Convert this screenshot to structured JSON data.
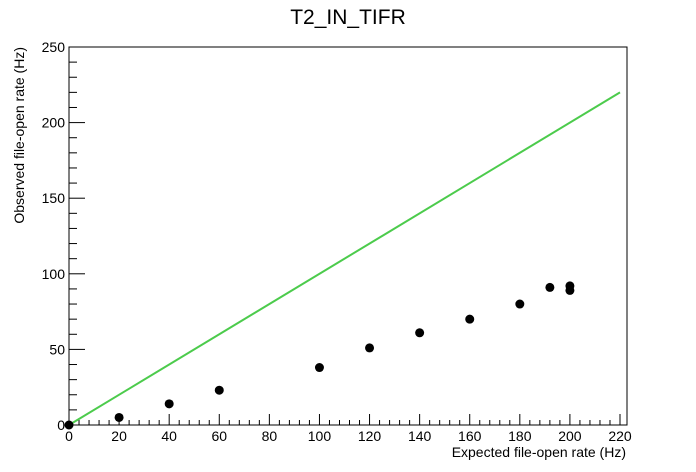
{
  "chart_data": {
    "type": "scatter",
    "title": "T2_IN_TIFR",
    "xlabel": "Expected file-open rate (Hz)",
    "ylabel": "Observed file-open rate (Hz)",
    "xlim": [
      0,
      220
    ],
    "ylim": [
      0,
      250
    ],
    "x_ticks": [
      0,
      20,
      40,
      60,
      80,
      100,
      120,
      140,
      160,
      180,
      200,
      220
    ],
    "y_ticks": [
      0,
      50,
      100,
      150,
      200,
      250
    ],
    "x_tick_labels": [
      "0",
      "20",
      "40",
      "60",
      "80",
      "100",
      "120",
      "140",
      "160",
      "180",
      "200",
      "220"
    ],
    "y_tick_labels": [
      "0",
      "50",
      "100",
      "150",
      "200",
      "250"
    ],
    "grid": false,
    "series": [
      {
        "kind": "points",
        "color": "#000000",
        "x": [
          0,
          20,
          40,
          60,
          100,
          120,
          140,
          160,
          180,
          192,
          200,
          200
        ],
        "y": [
          0,
          5,
          14,
          23,
          38,
          51,
          61,
          70,
          80,
          91,
          92,
          89
        ]
      },
      {
        "kind": "line",
        "color": "#4ccb4c",
        "x": [
          0,
          220
        ],
        "y": [
          0,
          220
        ]
      }
    ]
  }
}
